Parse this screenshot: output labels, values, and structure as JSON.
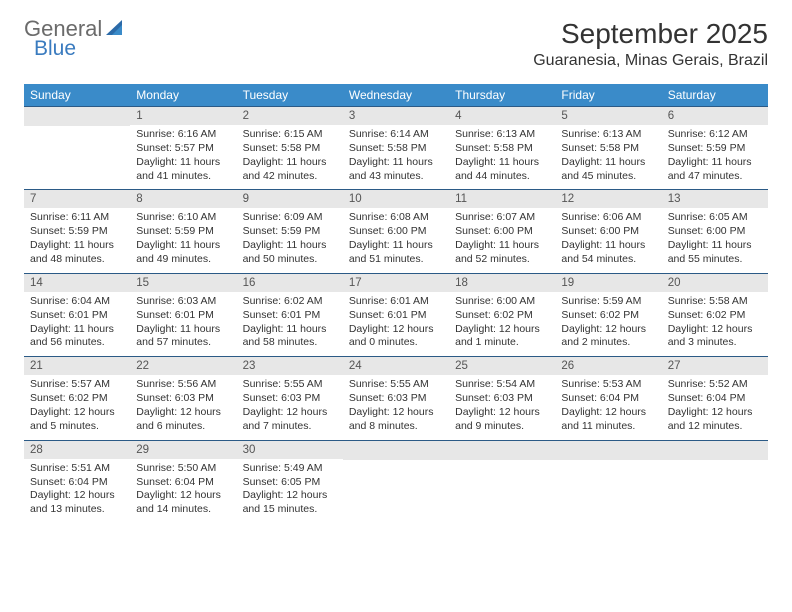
{
  "colors": {
    "header_bar": "#3a8bc9",
    "header_text": "#ffffff",
    "row_divider": "#2b5a86",
    "daynum_bg": "#e7e7e7",
    "daynum_text": "#555555",
    "body_text": "#333333",
    "logo_gray": "#6b6b6b",
    "logo_blue": "#3a7bbf",
    "page_bg": "#ffffff"
  },
  "typography": {
    "title_fontsize_pt": 21,
    "location_fontsize_pt": 12,
    "dow_fontsize_pt": 9,
    "daynum_fontsize_pt": 9,
    "body_fontsize_pt": 8,
    "font_family": "Arial"
  },
  "logo": {
    "line1": "General",
    "line2": "Blue"
  },
  "title": "September 2025",
  "location": "Guaranesia, Minas Gerais, Brazil",
  "days_of_week": [
    "Sunday",
    "Monday",
    "Tuesday",
    "Wednesday",
    "Thursday",
    "Friday",
    "Saturday"
  ],
  "weeks": [
    [
      {
        "blank": true
      },
      {
        "n": "1",
        "sr": "Sunrise: 6:16 AM",
        "ss": "Sunset: 5:57 PM",
        "d1": "Daylight: 11 hours",
        "d2": "and 41 minutes."
      },
      {
        "n": "2",
        "sr": "Sunrise: 6:15 AM",
        "ss": "Sunset: 5:58 PM",
        "d1": "Daylight: 11 hours",
        "d2": "and 42 minutes."
      },
      {
        "n": "3",
        "sr": "Sunrise: 6:14 AM",
        "ss": "Sunset: 5:58 PM",
        "d1": "Daylight: 11 hours",
        "d2": "and 43 minutes."
      },
      {
        "n": "4",
        "sr": "Sunrise: 6:13 AM",
        "ss": "Sunset: 5:58 PM",
        "d1": "Daylight: 11 hours",
        "d2": "and 44 minutes."
      },
      {
        "n": "5",
        "sr": "Sunrise: 6:13 AM",
        "ss": "Sunset: 5:58 PM",
        "d1": "Daylight: 11 hours",
        "d2": "and 45 minutes."
      },
      {
        "n": "6",
        "sr": "Sunrise: 6:12 AM",
        "ss": "Sunset: 5:59 PM",
        "d1": "Daylight: 11 hours",
        "d2": "and 47 minutes."
      }
    ],
    [
      {
        "n": "7",
        "sr": "Sunrise: 6:11 AM",
        "ss": "Sunset: 5:59 PM",
        "d1": "Daylight: 11 hours",
        "d2": "and 48 minutes."
      },
      {
        "n": "8",
        "sr": "Sunrise: 6:10 AM",
        "ss": "Sunset: 5:59 PM",
        "d1": "Daylight: 11 hours",
        "d2": "and 49 minutes."
      },
      {
        "n": "9",
        "sr": "Sunrise: 6:09 AM",
        "ss": "Sunset: 5:59 PM",
        "d1": "Daylight: 11 hours",
        "d2": "and 50 minutes."
      },
      {
        "n": "10",
        "sr": "Sunrise: 6:08 AM",
        "ss": "Sunset: 6:00 PM",
        "d1": "Daylight: 11 hours",
        "d2": "and 51 minutes."
      },
      {
        "n": "11",
        "sr": "Sunrise: 6:07 AM",
        "ss": "Sunset: 6:00 PM",
        "d1": "Daylight: 11 hours",
        "d2": "and 52 minutes."
      },
      {
        "n": "12",
        "sr": "Sunrise: 6:06 AM",
        "ss": "Sunset: 6:00 PM",
        "d1": "Daylight: 11 hours",
        "d2": "and 54 minutes."
      },
      {
        "n": "13",
        "sr": "Sunrise: 6:05 AM",
        "ss": "Sunset: 6:00 PM",
        "d1": "Daylight: 11 hours",
        "d2": "and 55 minutes."
      }
    ],
    [
      {
        "n": "14",
        "sr": "Sunrise: 6:04 AM",
        "ss": "Sunset: 6:01 PM",
        "d1": "Daylight: 11 hours",
        "d2": "and 56 minutes."
      },
      {
        "n": "15",
        "sr": "Sunrise: 6:03 AM",
        "ss": "Sunset: 6:01 PM",
        "d1": "Daylight: 11 hours",
        "d2": "and 57 minutes."
      },
      {
        "n": "16",
        "sr": "Sunrise: 6:02 AM",
        "ss": "Sunset: 6:01 PM",
        "d1": "Daylight: 11 hours",
        "d2": "and 58 minutes."
      },
      {
        "n": "17",
        "sr": "Sunrise: 6:01 AM",
        "ss": "Sunset: 6:01 PM",
        "d1": "Daylight: 12 hours",
        "d2": "and 0 minutes."
      },
      {
        "n": "18",
        "sr": "Sunrise: 6:00 AM",
        "ss": "Sunset: 6:02 PM",
        "d1": "Daylight: 12 hours",
        "d2": "and 1 minute."
      },
      {
        "n": "19",
        "sr": "Sunrise: 5:59 AM",
        "ss": "Sunset: 6:02 PM",
        "d1": "Daylight: 12 hours",
        "d2": "and 2 minutes."
      },
      {
        "n": "20",
        "sr": "Sunrise: 5:58 AM",
        "ss": "Sunset: 6:02 PM",
        "d1": "Daylight: 12 hours",
        "d2": "and 3 minutes."
      }
    ],
    [
      {
        "n": "21",
        "sr": "Sunrise: 5:57 AM",
        "ss": "Sunset: 6:02 PM",
        "d1": "Daylight: 12 hours",
        "d2": "and 5 minutes."
      },
      {
        "n": "22",
        "sr": "Sunrise: 5:56 AM",
        "ss": "Sunset: 6:03 PM",
        "d1": "Daylight: 12 hours",
        "d2": "and 6 minutes."
      },
      {
        "n": "23",
        "sr": "Sunrise: 5:55 AM",
        "ss": "Sunset: 6:03 PM",
        "d1": "Daylight: 12 hours",
        "d2": "and 7 minutes."
      },
      {
        "n": "24",
        "sr": "Sunrise: 5:55 AM",
        "ss": "Sunset: 6:03 PM",
        "d1": "Daylight: 12 hours",
        "d2": "and 8 minutes."
      },
      {
        "n": "25",
        "sr": "Sunrise: 5:54 AM",
        "ss": "Sunset: 6:03 PM",
        "d1": "Daylight: 12 hours",
        "d2": "and 9 minutes."
      },
      {
        "n": "26",
        "sr": "Sunrise: 5:53 AM",
        "ss": "Sunset: 6:04 PM",
        "d1": "Daylight: 12 hours",
        "d2": "and 11 minutes."
      },
      {
        "n": "27",
        "sr": "Sunrise: 5:52 AM",
        "ss": "Sunset: 6:04 PM",
        "d1": "Daylight: 12 hours",
        "d2": "and 12 minutes."
      }
    ],
    [
      {
        "n": "28",
        "sr": "Sunrise: 5:51 AM",
        "ss": "Sunset: 6:04 PM",
        "d1": "Daylight: 12 hours",
        "d2": "and 13 minutes."
      },
      {
        "n": "29",
        "sr": "Sunrise: 5:50 AM",
        "ss": "Sunset: 6:04 PM",
        "d1": "Daylight: 12 hours",
        "d2": "and 14 minutes."
      },
      {
        "n": "30",
        "sr": "Sunrise: 5:49 AM",
        "ss": "Sunset: 6:05 PM",
        "d1": "Daylight: 12 hours",
        "d2": "and 15 minutes."
      },
      {
        "blank": true
      },
      {
        "blank": true
      },
      {
        "blank": true
      },
      {
        "blank": true
      }
    ]
  ]
}
